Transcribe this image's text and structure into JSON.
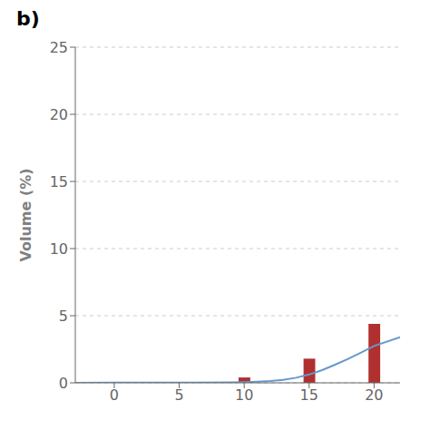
{
  "chart_data": {
    "type": "bar",
    "title": "b)",
    "ylabel": "Volume (%)",
    "xlim": [
      -3,
      22
    ],
    "xticks": [
      0,
      5,
      10,
      15,
      20
    ],
    "ylim": [
      0,
      25
    ],
    "yticks": [
      0,
      5,
      10,
      15,
      20,
      25
    ],
    "grid": true,
    "series": [
      {
        "type": "bar",
        "color": "#b03030",
        "x": [
          10,
          15,
          20
        ],
        "values": [
          0.4,
          1.8,
          4.4
        ]
      },
      {
        "type": "line",
        "color": "#6699cc",
        "x": [
          -3,
          0,
          3,
          6,
          9,
          10,
          11,
          12,
          13,
          14,
          15,
          16,
          17,
          18,
          19,
          20,
          22
        ],
        "values": [
          0,
          0.01,
          0.01,
          0.02,
          0.04,
          0.05,
          0.08,
          0.13,
          0.22,
          0.38,
          0.62,
          0.95,
          1.35,
          1.78,
          2.25,
          2.75,
          3.4
        ]
      }
    ]
  }
}
